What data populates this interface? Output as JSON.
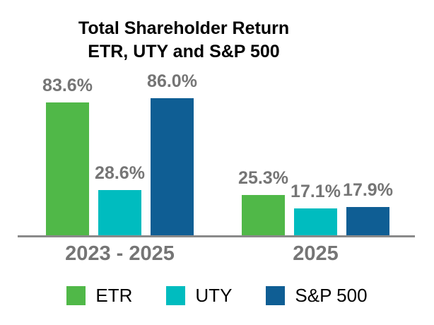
{
  "chart_data": {
    "type": "bar",
    "title": "Total Shareholder Return",
    "subtitle": "ETR, UTY and S&P 500",
    "categories": [
      "2023 - 2025",
      "2025"
    ],
    "series": [
      {
        "name": "ETR",
        "color": "#50b848",
        "values": [
          83.6,
          25.3
        ]
      },
      {
        "name": "UTY",
        "color": "#00bcbf",
        "values": [
          28.6,
          17.1
        ]
      },
      {
        "name": "S&P 500",
        "color": "#0f5e94",
        "values": [
          86.0,
          17.9
        ]
      }
    ],
    "data_labels": [
      "83.6%",
      "28.6%",
      "86.0%",
      "25.3%",
      "17.1%",
      "17.9%"
    ],
    "value_suffix": "%",
    "xlabel": "",
    "ylabel": "",
    "ylim": [
      0,
      100
    ],
    "grid": false,
    "legend_position": "bottom",
    "legend": [
      "ETR",
      "UTY",
      "S&P 500"
    ],
    "colors": {
      "title": "#000000",
      "value_label": "#757575",
      "category_label": "#757575",
      "axis_line": "#8a8a8a",
      "legend_text": "#000000",
      "background": "#ffffff"
    }
  }
}
